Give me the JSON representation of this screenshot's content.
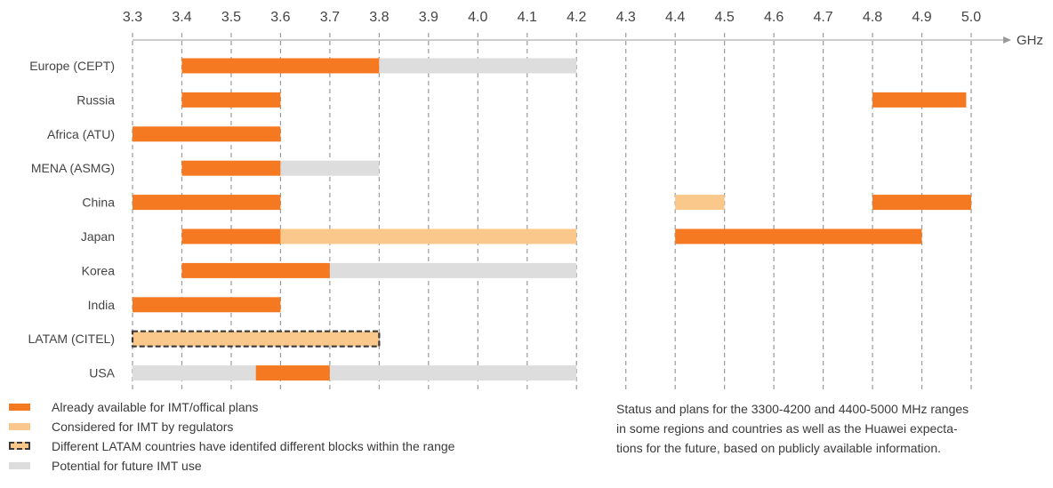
{
  "chart_data": {
    "type": "bar",
    "orientation": "horizontal-range",
    "xunit": "GHz",
    "xticks": [
      "3.3",
      "3.4",
      "3.5",
      "3.6",
      "3.7",
      "3.8",
      "3.9",
      "4.0",
      "4.1",
      "4.2",
      "4.3",
      "4.4",
      "4.5",
      "4.6",
      "4.7",
      "4.8",
      "4.9",
      "5.0"
    ],
    "xlim": [
      3.3,
      5.0
    ],
    "grid": true,
    "categories": [
      "Europe (CEPT)",
      "Russia",
      "Africa (ATU)",
      "MENA (ASMG)",
      "China",
      "Japan",
      "Korea",
      "India",
      "LATAM (CITEL)",
      "USA"
    ],
    "status_colors": {
      "available": "#f47920",
      "considered": "#fbc88c",
      "potential": "#dddddd",
      "latam_border": "#3a3a3a"
    },
    "segments": [
      {
        "category": "Europe (CEPT)",
        "start": 3.4,
        "end": 3.8,
        "status": "available"
      },
      {
        "category": "Europe (CEPT)",
        "start": 3.8,
        "end": 4.2,
        "status": "potential"
      },
      {
        "category": "Russia",
        "start": 3.4,
        "end": 3.6,
        "status": "available"
      },
      {
        "category": "Russia",
        "start": 4.8,
        "end": 4.99,
        "status": "available"
      },
      {
        "category": "Africa (ATU)",
        "start": 3.3,
        "end": 3.6,
        "status": "available"
      },
      {
        "category": "MENA (ASMG)",
        "start": 3.4,
        "end": 3.6,
        "status": "available"
      },
      {
        "category": "MENA (ASMG)",
        "start": 3.6,
        "end": 3.8,
        "status": "potential"
      },
      {
        "category": "China",
        "start": 3.3,
        "end": 3.6,
        "status": "available"
      },
      {
        "category": "China",
        "start": 4.4,
        "end": 4.5,
        "status": "considered"
      },
      {
        "category": "China",
        "start": 4.8,
        "end": 5.0,
        "status": "available"
      },
      {
        "category": "Japan",
        "start": 3.4,
        "end": 3.6,
        "status": "available"
      },
      {
        "category": "Japan",
        "start": 3.6,
        "end": 4.2,
        "status": "considered"
      },
      {
        "category": "Japan",
        "start": 4.4,
        "end": 4.9,
        "status": "available"
      },
      {
        "category": "Korea",
        "start": 3.4,
        "end": 3.7,
        "status": "available"
      },
      {
        "category": "Korea",
        "start": 3.7,
        "end": 4.2,
        "status": "potential"
      },
      {
        "category": "India",
        "start": 3.3,
        "end": 3.6,
        "status": "available"
      },
      {
        "category": "LATAM (CITEL)",
        "start": 3.3,
        "end": 3.8,
        "status": "considered",
        "dashed": true
      },
      {
        "category": "USA",
        "start": 3.3,
        "end": 3.55,
        "status": "potential"
      },
      {
        "category": "USA",
        "start": 3.55,
        "end": 3.7,
        "status": "available"
      },
      {
        "category": "USA",
        "start": 3.7,
        "end": 4.2,
        "status": "potential"
      }
    ],
    "legend": [
      {
        "label": "Already available for IMT/offical plans",
        "status": "available"
      },
      {
        "label": "Considered for IMT by regulators",
        "status": "considered"
      },
      {
        "label": "Different LATAM countries have identifed different blocks within the range",
        "status": "dashed"
      },
      {
        "label": "Potential for future IMT use",
        "status": "potential"
      }
    ],
    "caption": [
      "Status and plans for the 3300-4200 and 4400-5000 MHz ranges",
      "in some regions and countries as well as the Huawei expecta-",
      "tions for the future, based on publicly available information."
    ]
  }
}
